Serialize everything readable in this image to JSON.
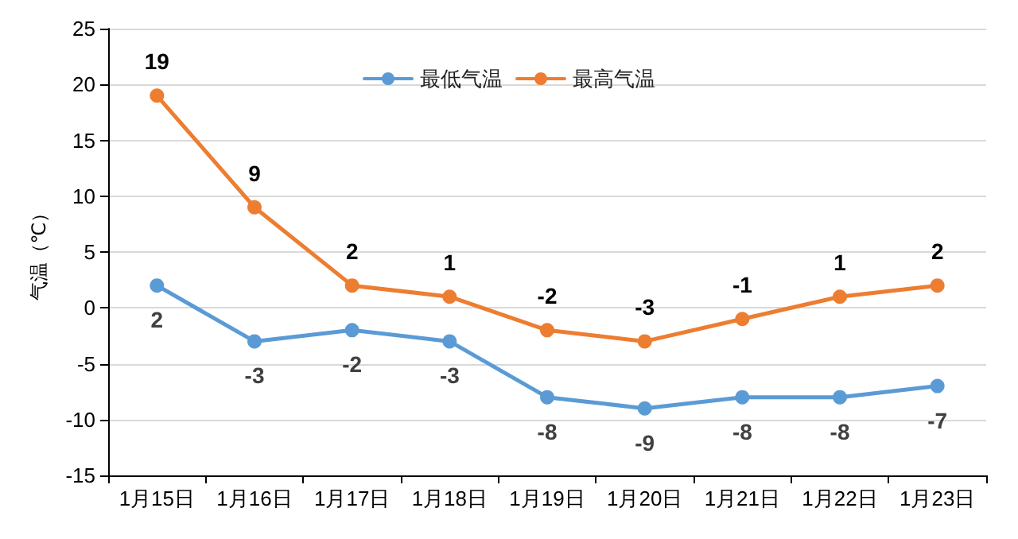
{
  "chart_data": {
    "type": "line",
    "ylabel": "气温（℃）",
    "categories": [
      "1月15日",
      "1月16日",
      "1月17日",
      "1月18日",
      "1月19日",
      "1月20日",
      "1月21日",
      "1月22日",
      "1月23日"
    ],
    "series": [
      {
        "name": "最低气温",
        "color": "#5b9bd5",
        "values": [
          2,
          -3,
          -2,
          -3,
          -8,
          -9,
          -8,
          -8,
          -7
        ]
      },
      {
        "name": "最高气温",
        "color": "#ed7d31",
        "values": [
          19,
          9,
          2,
          1,
          -2,
          -3,
          -1,
          1,
          2
        ]
      }
    ],
    "ylim": [
      -15,
      25
    ],
    "yticks": [
      -15,
      -10,
      -5,
      0,
      5,
      10,
      15,
      20,
      25
    ],
    "grid": "y",
    "legend": "top",
    "marker": "circle",
    "line_style": "solid",
    "data_labels": true
  }
}
